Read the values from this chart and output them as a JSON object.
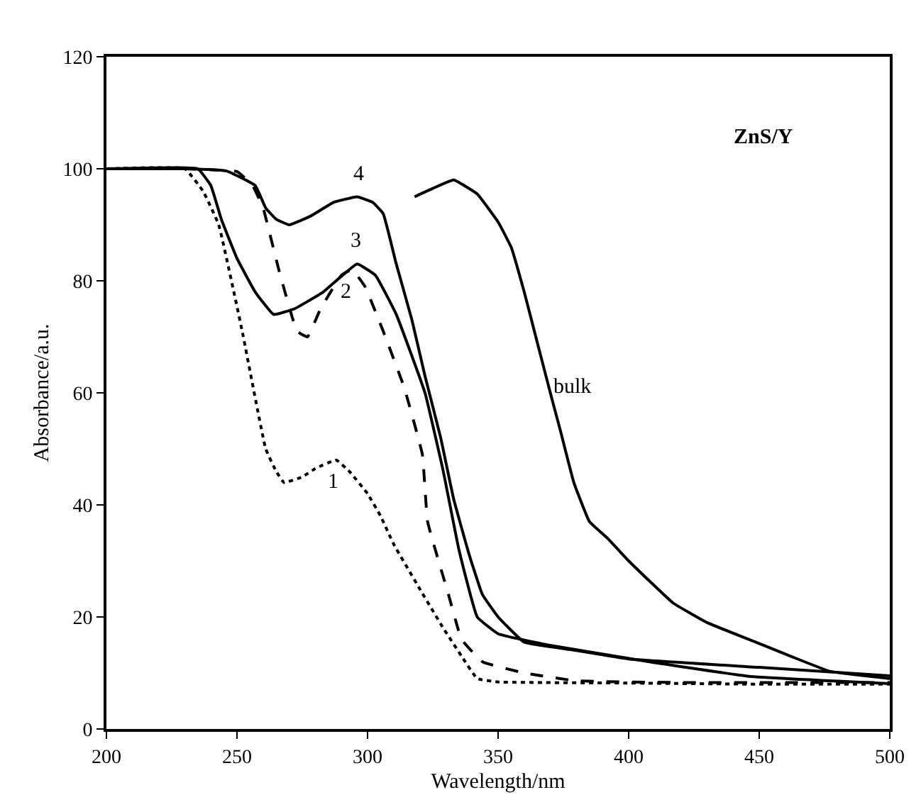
{
  "chart_data": {
    "type": "line",
    "xlabel": "Wavelength/nm",
    "ylabel": "Absorbance/a.u.",
    "xlim": [
      200,
      500
    ],
    "xticks": [
      200,
      250,
      300,
      350,
      400,
      450,
      500
    ],
    "ylim": [
      0,
      120
    ],
    "yticks": [
      0,
      20,
      40,
      60,
      80,
      100,
      120
    ],
    "grid": false,
    "marker": "none",
    "series": [
      {
        "color": "#000000",
        "line_style": "dotted",
        "x": [
          200,
          230,
          237,
          243,
          252,
          261,
          265,
          268,
          275,
          280,
          288,
          293,
          300,
          305,
          310,
          320,
          329,
          336,
          342,
          350,
          400,
          450,
          500
        ],
        "values": [
          100,
          100,
          96,
          90,
          71,
          50,
          46,
          44,
          45,
          46.5,
          48,
          46,
          42,
          38,
          33,
          25,
          18,
          13,
          9,
          8.4,
          8.2,
          8,
          8
        ]
      },
      {
        "color": "#000000",
        "line_style": "dashed",
        "x": [
          200,
          230,
          250,
          256,
          260,
          266,
          273,
          277,
          282,
          290,
          294,
          299,
          306,
          314,
          321,
          323,
          331,
          336,
          344,
          360,
          380,
          420,
          460,
          500
        ],
        "values": [
          100,
          100,
          99.5,
          97,
          93,
          82,
          71,
          70,
          75,
          81,
          82,
          79,
          71,
          61,
          49,
          37,
          24,
          16,
          12,
          10,
          8.6,
          8.3,
          8.3,
          8.3
        ]
      },
      {
        "color": "#000000",
        "line_style": "solid",
        "x": [
          200,
          235,
          240,
          244,
          250,
          257,
          264,
          272,
          283,
          296,
          303,
          311,
          322,
          329,
          335,
          342,
          350,
          369,
          408,
          446,
          500
        ],
        "values": [
          100,
          100,
          97,
          91,
          84,
          78,
          74,
          75,
          78,
          83,
          81,
          74,
          60,
          46,
          32,
          20,
          17,
          15,
          12,
          9.4,
          8.1
        ]
      },
      {
        "color": "#000000",
        "line_style": "solid",
        "x": [
          200,
          230,
          246,
          257,
          261,
          265,
          270,
          278,
          287,
          296,
          302,
          306,
          311,
          317,
          322,
          328,
          333,
          339,
          344,
          350,
          360,
          380,
          400,
          450,
          500
        ],
        "values": [
          100,
          100,
          99.6,
          97,
          93,
          91,
          90,
          91.5,
          94,
          95,
          94,
          92,
          83,
          73,
          63,
          52,
          41,
          31,
          24,
          20,
          15.5,
          14,
          12.5,
          11,
          9.5
        ]
      },
      {
        "color": "#000000",
        "line_style": "solid",
        "x": [
          318,
          325,
          333,
          342,
          350,
          355,
          360,
          365,
          370,
          374,
          379,
          385,
          392,
          400,
          417,
          430,
          446,
          462,
          477,
          500
        ],
        "values": [
          95,
          96.5,
          98,
          95.5,
          90.5,
          86,
          78,
          69,
          60,
          53,
          44,
          37,
          34,
          30,
          22.5,
          19,
          16,
          13,
          10.3,
          9
        ]
      }
    ],
    "annotations": [
      {
        "text": "1",
        "x": 288,
        "y": 48
      },
      {
        "text": "2",
        "x": 294,
        "y": 82
      },
      {
        "text": "3",
        "x": 296,
        "y": 83
      },
      {
        "text": "4",
        "x": 296,
        "y": 95
      },
      {
        "text": "bulk",
        "x": 370,
        "y": 60
      },
      "ZnS/Y"
    ]
  }
}
